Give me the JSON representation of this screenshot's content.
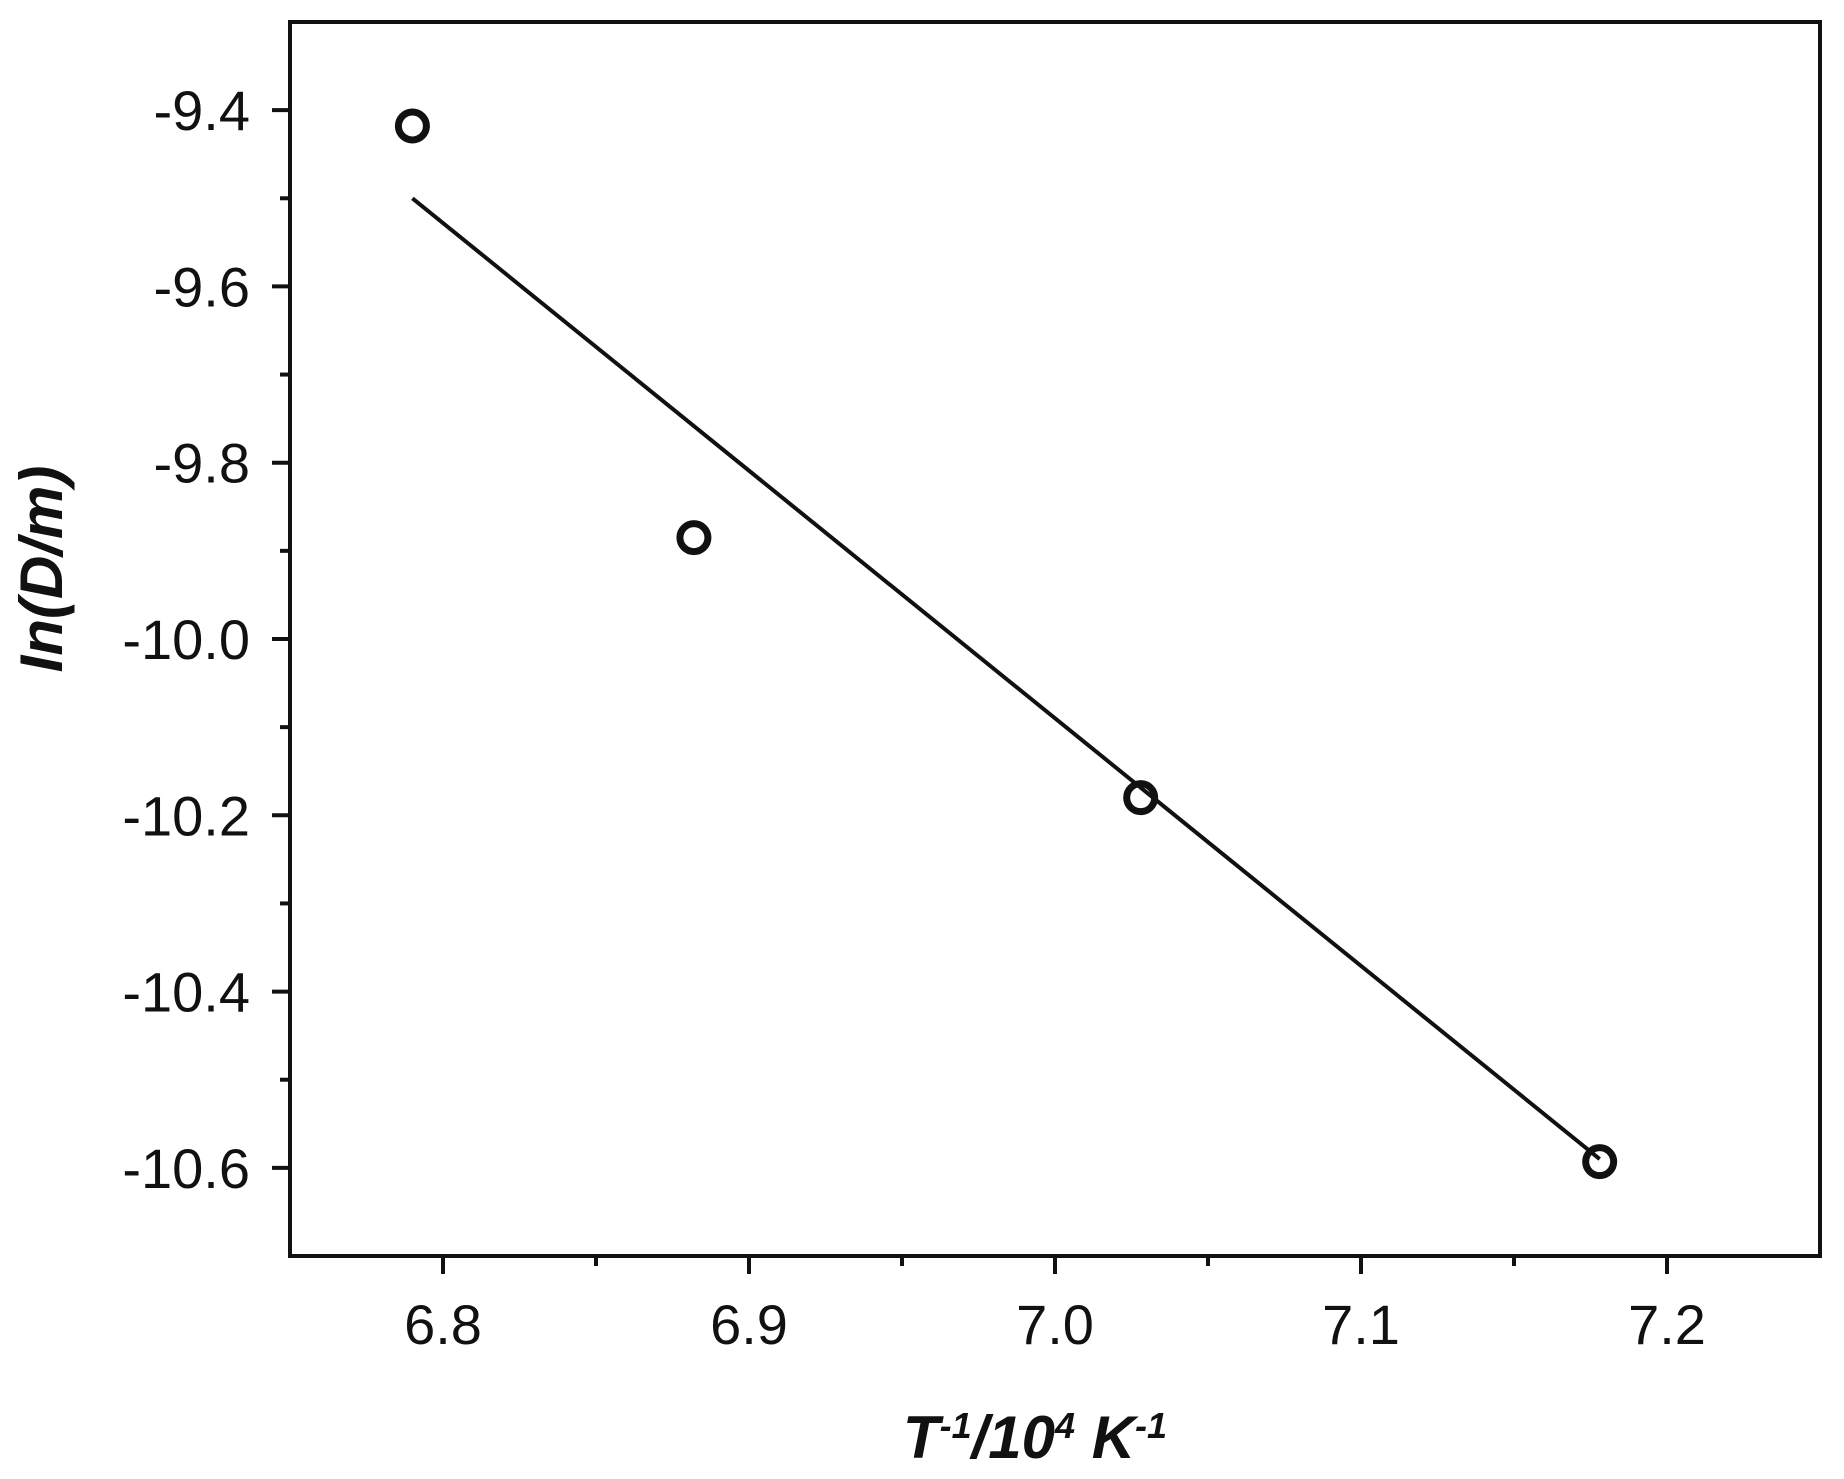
{
  "chart_data": {
    "type": "scatter",
    "xlabel": {
      "parts": [
        {
          "text": "T",
          "sup": false
        },
        {
          "text": "-1",
          "sup": true
        },
        {
          "text": "/10",
          "sup": false
        },
        {
          "text": "4",
          "sup": true
        },
        {
          "text": " K",
          "sup": false
        },
        {
          "text": "-1",
          "sup": true
        }
      ]
    },
    "ylabel": "In(D/m)",
    "xlim": [
      6.75,
      7.25
    ],
    "ylim": [
      -10.7,
      -9.3
    ],
    "x_ticks": [
      6.8,
      6.9,
      7.0,
      7.1,
      7.2
    ],
    "x_tick_labels": [
      "6.8",
      "6.9",
      "7.0",
      "7.1",
      "7.2"
    ],
    "x_minor_ticks": [
      6.85,
      6.95,
      7.05,
      7.15
    ],
    "y_ticks": [
      -9.4,
      -9.6,
      -9.8,
      -10.0,
      -10.2,
      -10.4,
      -10.6
    ],
    "y_tick_labels": [
      "-9.4",
      "-9.6",
      "-9.8",
      "-10.0",
      "-10.2",
      "-10.4",
      "-10.6"
    ],
    "y_minor_ticks": [
      -9.5,
      -9.7,
      -9.9,
      -10.1,
      -10.3,
      -10.5
    ],
    "grid": false,
    "series": [
      {
        "marker": "open-circle",
        "x": [
          6.79,
          6.882,
          7.028,
          7.178
        ],
        "y": [
          -9.418,
          -9.885,
          -10.18,
          -10.593
        ]
      }
    ],
    "fit_line": {
      "x": [
        6.79,
        7.178
      ],
      "y": [
        -9.5,
        -10.59
      ]
    },
    "colors": {
      "axis": "#111111",
      "marker": "#111111",
      "line": "#111111",
      "background": "#ffffff"
    }
  }
}
